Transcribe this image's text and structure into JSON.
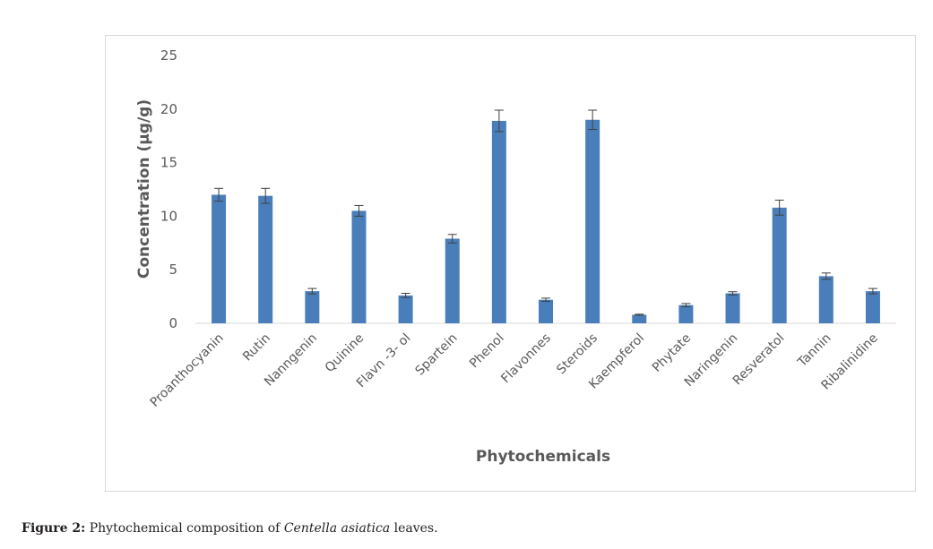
{
  "chart_data": {
    "type": "bar",
    "categories": [
      "Proanthocyanin",
      "Rutin",
      "Nanngenin",
      "Quinine",
      "Flavn -3- ol",
      "Spartein",
      "Phenol",
      "Flavonnes",
      "Steroids",
      "Kaempferol",
      "Phytate",
      "Naringenin",
      "Resveratol",
      "Tannin",
      "Ribalinidine"
    ],
    "values": [
      12.0,
      11.9,
      3.0,
      10.5,
      2.6,
      7.9,
      18.9,
      2.2,
      19.0,
      0.8,
      1.7,
      2.8,
      10.8,
      4.4,
      3.0
    ],
    "errors": [
      0.6,
      0.7,
      0.25,
      0.5,
      0.2,
      0.4,
      1.0,
      0.15,
      0.9,
      0.05,
      0.15,
      0.15,
      0.7,
      0.3,
      0.25
    ],
    "ylim": [
      0,
      25
    ],
    "yticks": [
      0,
      5,
      10,
      15,
      20,
      25
    ],
    "xlabel": "Phytochemicals",
    "ylabel": "Concentration (µg/g)",
    "bar_color": "#4a7ebb",
    "grid": false
  },
  "caption": {
    "label": "Figure 2:",
    "text_before": " Phytochemical composition of ",
    "species": "Centella asiatica",
    "text_after": " leaves."
  }
}
